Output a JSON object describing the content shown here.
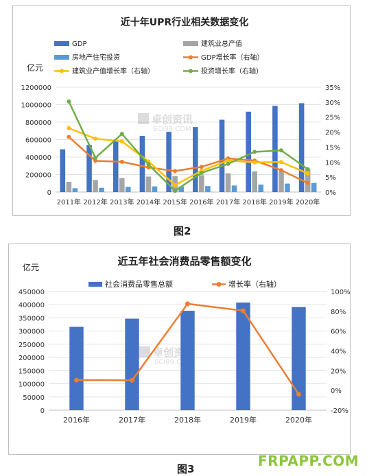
{
  "figures": {
    "caption1": "图2",
    "caption2": "图3",
    "site_logo": "FRPAPP.COM",
    "watermark_cn": "卓创资讯",
    "watermark_en": "SCI99.COM"
  },
  "colors": {
    "blue": "#4472c4",
    "gray": "#a5a5a5",
    "lightblue": "#5b9bd5",
    "orange": "#ed7d31",
    "yellow": "#ffc000",
    "green": "#70ad47",
    "blue2": "#4472c4",
    "orange2": "#ed7d31"
  },
  "chart_data": [
    {
      "type": "bar",
      "title": "近十年UPR行业相关数据变化",
      "ylabel": "亿元",
      "categories": [
        "2011年",
        "2012年",
        "2013年",
        "2014年",
        "2015年",
        "2016年",
        "2017年",
        "2018年",
        "2019年",
        "2020年"
      ],
      "ylim": [
        0,
        1200000
      ],
      "y_ticks": [
        "0",
        "200000",
        "400000",
        "600000",
        "800000",
        "1000000",
        "1200000"
      ],
      "y2lim": [
        0,
        35
      ],
      "y2_ticks": [
        "0%",
        "5%",
        "10%",
        "15%",
        "20%",
        "25%",
        "30%",
        "35%"
      ],
      "legend_position": "top",
      "series": [
        {
          "name": "GDP",
          "kind": "bar",
          "axis": "left",
          "color_key": "blue",
          "values": [
            489000,
            540000,
            595000,
            643000,
            689000,
            744000,
            827000,
            919000,
            986000,
            1016000
          ]
        },
        {
          "name": "建筑业总产值",
          "kind": "bar",
          "axis": "left",
          "color_key": "gray",
          "values": [
            117000,
            138000,
            160000,
            177000,
            181000,
            193000,
            214000,
            236000,
            248000,
            263000
          ]
        },
        {
          "name": "房地产住宅投资",
          "kind": "bar",
          "axis": "left",
          "color_key": "lightblue",
          "values": [
            44000,
            49000,
            59000,
            64000,
            64000,
            69000,
            75000,
            85000,
            97000,
            104000
          ]
        },
        {
          "name": "GDP增长率（右轴）",
          "kind": "line",
          "axis": "right",
          "color_key": "orange",
          "values": [
            18.4,
            10.4,
            10.1,
            8.2,
            7.0,
            8.4,
            11.2,
            10.5,
            7.3,
            3.0
          ]
        },
        {
          "name": "建筑业产值增长率（右轴）",
          "kind": "line",
          "axis": "right",
          "color_key": "yellow",
          "values": [
            21.3,
            17.8,
            16.9,
            10.2,
            2.3,
            7.1,
            10.5,
            9.9,
            10.0,
            6.2
          ]
        },
        {
          "name": "投资增长率（右轴）",
          "kind": "line",
          "axis": "right",
          "color_key": "green",
          "values": [
            30.2,
            11.4,
            19.4,
            9.2,
            0.4,
            6.4,
            9.4,
            13.4,
            13.9,
            7.6
          ]
        }
      ]
    },
    {
      "type": "bar",
      "title": "近五年社会消费品零售额变化",
      "ylabel": "亿元",
      "categories": [
        "2016年",
        "2017年",
        "2018年",
        "2019年",
        "2020年"
      ],
      "ylim": [
        0,
        450000
      ],
      "y_ticks": [
        "0",
        "50000",
        "100000",
        "150000",
        "200000",
        "250000",
        "300000",
        "350000",
        "400000",
        "450000"
      ],
      "y2lim": [
        -20,
        100
      ],
      "y2_ticks": [
        "-20%",
        "0%",
        "20%",
        "40%",
        "60%",
        "80%",
        "100%"
      ],
      "legend_position": "top",
      "series": [
        {
          "name": "社会消费品零售总额",
          "kind": "bar",
          "axis": "left",
          "color_key": "blue2",
          "values": [
            316000,
            347000,
            377000,
            408000,
            391000
          ]
        },
        {
          "name": "增长率（右轴）",
          "kind": "line",
          "axis": "right",
          "color_key": "orange2",
          "values": [
            10.4,
            10.2,
            87.6,
            80.6,
            -3.9
          ]
        }
      ]
    }
  ]
}
